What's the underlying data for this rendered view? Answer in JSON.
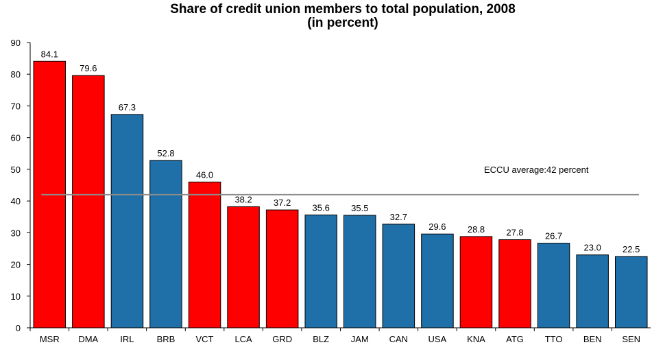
{
  "chart_data": {
    "type": "bar",
    "title": "Share of credit union members to total population, 2008",
    "subtitle": "(in percent)",
    "categories": [
      "MSR",
      "DMA",
      "IRL",
      "BRB",
      "VCT",
      "LCA",
      "GRD",
      "BLZ",
      "JAM",
      "CAN",
      "USA",
      "KNA",
      "ATG",
      "TTO",
      "BEN",
      "SEN"
    ],
    "values": [
      84.1,
      79.6,
      67.3,
      52.8,
      46.0,
      38.2,
      37.2,
      35.6,
      35.5,
      32.7,
      29.6,
      28.8,
      27.8,
      26.7,
      23.0,
      22.5
    ],
    "value_labels": [
      "84.1",
      "79.6",
      "67.3",
      "52.8",
      "46.0",
      "38.2",
      "37.2",
      "35.6",
      "35.5",
      "32.7",
      "29.6",
      "28.8",
      "27.8",
      "26.7",
      "23.0",
      "22.5"
    ],
    "bar_colors": [
      "red",
      "red",
      "blue",
      "blue",
      "red",
      "red",
      "red",
      "blue",
      "blue",
      "blue",
      "blue",
      "red",
      "red",
      "blue",
      "blue",
      "blue"
    ],
    "colors": {
      "red": "#ff0000",
      "blue": "#1f6fa8",
      "reference_line": "#8c8c8c"
    },
    "ylim": [
      0,
      90
    ],
    "yticks": [
      0,
      10,
      20,
      30,
      40,
      50,
      60,
      70,
      80,
      90
    ],
    "xlabel": "",
    "ylabel": "",
    "grid": false,
    "reference_line": {
      "value": 42,
      "label": "ECCU average:42 percent"
    }
  }
}
